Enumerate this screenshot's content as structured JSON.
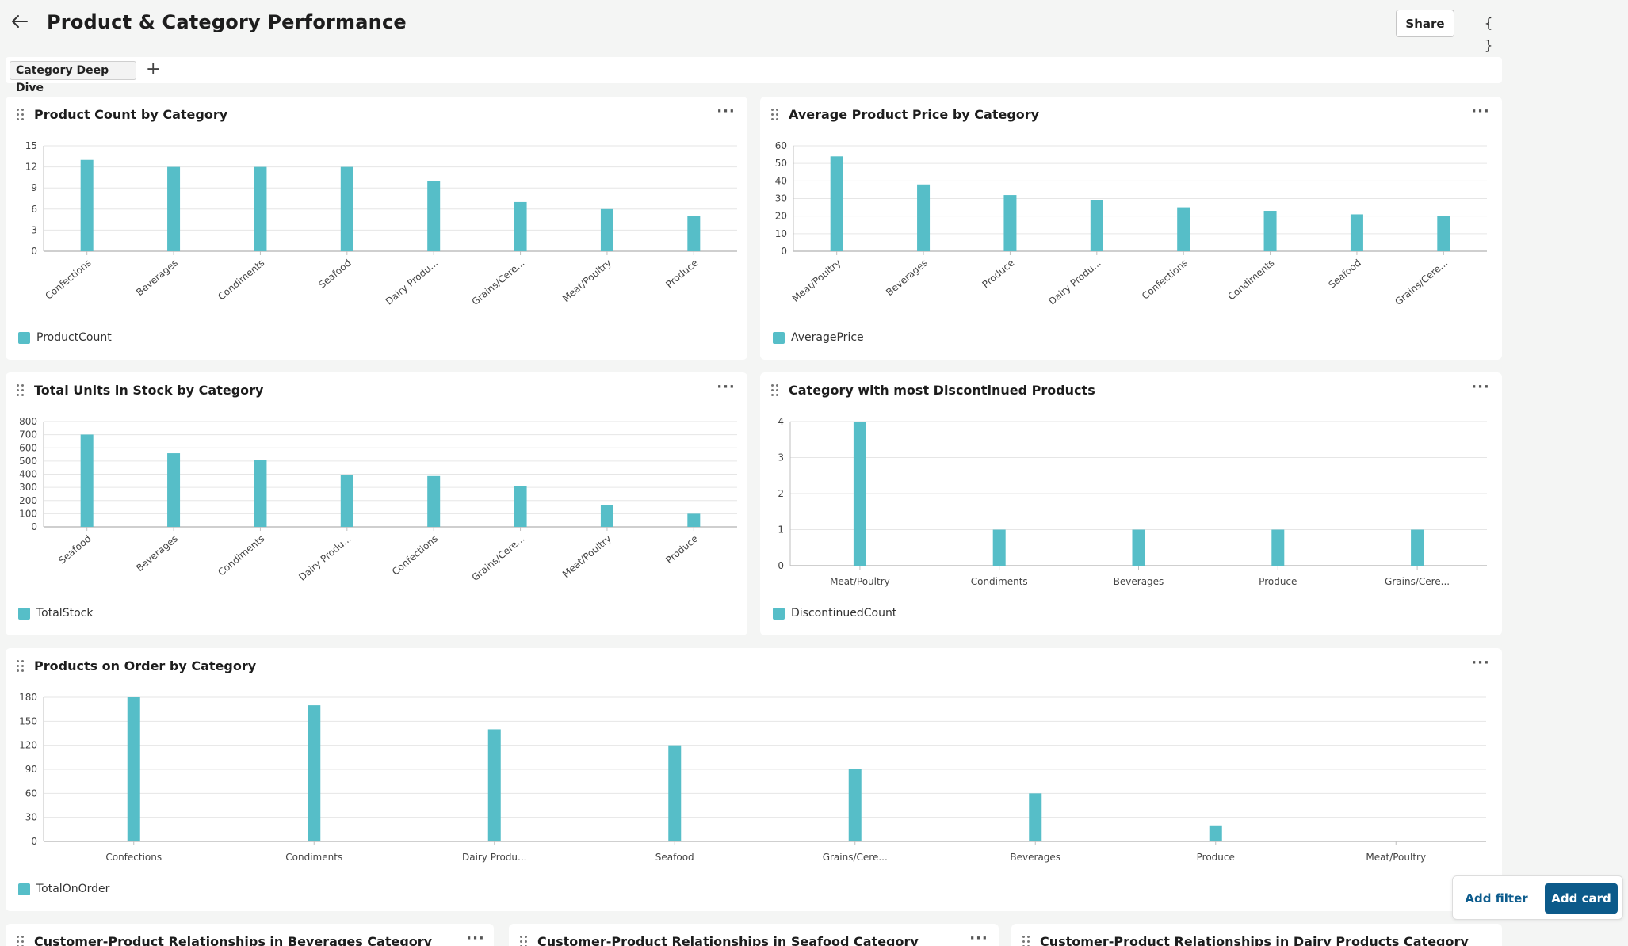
{
  "page": {
    "title": "Product & Category Performance"
  },
  "header": {
    "share_label": "Share",
    "json_label": "{ }"
  },
  "tabs": [
    {
      "label": "Category Deep Dive"
    }
  ],
  "tab_add_label": "+",
  "menu_label": "···",
  "fab": {
    "add_filter_label": "Add filter",
    "add_card_label": "Add card"
  },
  "colors": {
    "bar": "#56bec8",
    "accent": "#0c5a8a",
    "grid": "#e6e6e6",
    "axis": "#bfbfbf"
  },
  "icons": {
    "back": "arrow-left-icon",
    "drag": "drag-handle-icon",
    "menu": "more-horizontal-icon"
  },
  "bottom_cards": [
    {
      "title": "Customer-Product Relationships in Beverages Category"
    },
    {
      "title": "Customer-Product Relationships in Seafood Category"
    },
    {
      "title": "Customer-Product Relationships in Dairy Products Category"
    }
  ],
  "chart_data": [
    {
      "title": "Product Count by Category",
      "type": "bar",
      "categories": [
        "Confections",
        "Beverages",
        "Condiments",
        "Seafood",
        "Dairy Produ...",
        "Grains/Cere...",
        "Meat/Poultry",
        "Produce"
      ],
      "series": [
        {
          "name": "ProductCount",
          "values": [
            13,
            12,
            12,
            12,
            10,
            7,
            6,
            5
          ]
        }
      ],
      "ylim": [
        0,
        15
      ],
      "yticks": [
        0,
        3,
        6,
        9,
        12,
        15
      ],
      "rotated_labels": true,
      "legend": "bottom-left",
      "grid": true
    },
    {
      "title": "Average Product Price by Category",
      "type": "bar",
      "categories": [
        "Meat/Poultry",
        "Beverages",
        "Produce",
        "Dairy Produ...",
        "Confections",
        "Condiments",
        "Seafood",
        "Grains/Cere..."
      ],
      "series": [
        {
          "name": "AveragePrice",
          "values": [
            54,
            38,
            32,
            29,
            25,
            23,
            21,
            20
          ]
        }
      ],
      "ylim": [
        0,
        60
      ],
      "yticks": [
        0,
        10,
        20,
        30,
        40,
        50,
        60
      ],
      "rotated_labels": true,
      "legend": "bottom-left",
      "grid": true
    },
    {
      "title": "Total Units in Stock by Category",
      "type": "bar",
      "categories": [
        "Seafood",
        "Beverages",
        "Condiments",
        "Dairy Produ...",
        "Confections",
        "Grains/Cere...",
        "Meat/Poultry",
        "Produce"
      ],
      "series": [
        {
          "name": "TotalStock",
          "values": [
            701,
            559,
            507,
            393,
            386,
            308,
            165,
            100
          ]
        }
      ],
      "ylim": [
        0,
        800
      ],
      "yticks": [
        0,
        100,
        200,
        300,
        400,
        500,
        600,
        700,
        800
      ],
      "rotated_labels": true,
      "legend": "bottom-left",
      "grid": true
    },
    {
      "title": "Category with most Discontinued Products",
      "type": "bar",
      "categories": [
        "Meat/Poultry",
        "Condiments",
        "Beverages",
        "Produce",
        "Grains/Cere..."
      ],
      "series": [
        {
          "name": "DiscontinuedCount",
          "values": [
            4,
            1,
            1,
            1,
            1
          ]
        }
      ],
      "ylim": [
        0,
        4
      ],
      "yticks": [
        0,
        1,
        2,
        3,
        4
      ],
      "rotated_labels": false,
      "legend": "bottom-left",
      "grid": true
    },
    {
      "title": "Products on Order by Category",
      "type": "bar",
      "categories": [
        "Confections",
        "Condiments",
        "Dairy Produ...",
        "Seafood",
        "Grains/Cere...",
        "Beverages",
        "Produce",
        "Meat/Poultry"
      ],
      "series": [
        {
          "name": "TotalOnOrder",
          "values": [
            180,
            170,
            140,
            120,
            90,
            60,
            20,
            0
          ]
        }
      ],
      "ylim": [
        0,
        180
      ],
      "yticks": [
        0,
        30,
        60,
        90,
        120,
        150,
        180
      ],
      "rotated_labels": false,
      "legend": "bottom-left",
      "grid": true
    }
  ]
}
